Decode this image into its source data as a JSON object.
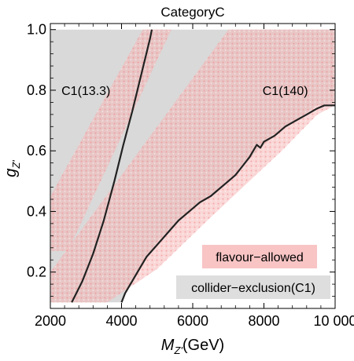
{
  "chart_data": {
    "type": "area",
    "title": "CategoryC",
    "xlabel": {
      "main": "M",
      "sub": "Z'",
      "unit": "(GeV)"
    },
    "ylabel": {
      "main": "g",
      "sub": "Z'"
    },
    "xlim": [
      2000,
      10000
    ],
    "ylim": [
      0.08,
      1.02
    ],
    "xticks": [
      2000,
      4000,
      6000,
      8000,
      10000
    ],
    "xtick_labels": [
      "2000",
      "4000",
      "6000",
      "8000",
      "10 000"
    ],
    "yticks": [
      0.2,
      0.4,
      0.6,
      0.8,
      1.0
    ],
    "ytick_labels": [
      "0.2",
      "0.4",
      "0.6",
      "0.8",
      "1.0"
    ],
    "colors": {
      "collider": "#d9d9d9",
      "flavour": "#f7a3a3",
      "contour": "#222222",
      "frame": "#000000"
    },
    "regions": {
      "collider_exclusion_boundary": [
        [
          2000,
          1.0
        ],
        [
          2000,
          0.1
        ],
        [
          4000,
          0.1
        ],
        [
          4100,
          0.13
        ],
        [
          4300,
          0.17
        ],
        [
          4600,
          0.23
        ],
        [
          5000,
          0.3
        ],
        [
          5600,
          0.37
        ],
        [
          6200,
          0.43
        ],
        [
          6700,
          0.47
        ],
        [
          7200,
          0.52
        ],
        [
          7500,
          0.56
        ],
        [
          7800,
          0.6
        ],
        [
          8100,
          0.63
        ],
        [
          8500,
          0.67
        ],
        [
          9000,
          0.71
        ],
        [
          9500,
          0.75
        ],
        [
          10000,
          0.75
        ],
        [
          10000,
          1.0
        ]
      ],
      "flavour_bands": [
        {
          "name": "upper",
          "polygon": [
            [
              2000,
              0.27
            ],
            [
              2000,
              0.45
            ],
            [
              4500,
              0.98
            ],
            [
              4600,
              1.0
            ],
            [
              5400,
              1.0
            ],
            [
              2500,
              0.27
            ]
          ]
        },
        {
          "name": "lower",
          "polygon": [
            [
              2000,
              0.1
            ],
            [
              2000,
              0.2
            ],
            [
              7000,
              1.0
            ],
            [
              10000,
              1.0
            ],
            [
              10000,
              0.75
            ],
            [
              9500,
              0.72
            ],
            [
              8500,
              0.6
            ],
            [
              6500,
              0.38
            ],
            [
              5000,
              0.21
            ],
            [
              3600,
              0.1
            ]
          ]
        }
      ]
    },
    "contours": [
      {
        "label": "C1(13.3)",
        "label_at": [
          3000,
          0.8
        ],
        "points": [
          [
            2600,
            0.1
          ],
          [
            2900,
            0.17
          ],
          [
            3200,
            0.26
          ],
          [
            3500,
            0.37
          ],
          [
            3800,
            0.5
          ],
          [
            4050,
            0.62
          ],
          [
            4300,
            0.73
          ],
          [
            4550,
            0.85
          ],
          [
            4800,
            0.97
          ],
          [
            4850,
            1.0
          ]
        ]
      },
      {
        "label": "C1(140)",
        "label_at": [
          8600,
          0.8
        ],
        "points": [
          [
            4000,
            0.1
          ],
          [
            4100,
            0.13
          ],
          [
            4300,
            0.17
          ],
          [
            4500,
            0.21
          ],
          [
            4700,
            0.25
          ],
          [
            5000,
            0.29
          ],
          [
            5300,
            0.33
          ],
          [
            5600,
            0.37
          ],
          [
            5900,
            0.4
          ],
          [
            6200,
            0.43
          ],
          [
            6500,
            0.45
          ],
          [
            6700,
            0.47
          ],
          [
            7000,
            0.5
          ],
          [
            7200,
            0.52
          ],
          [
            7400,
            0.55
          ],
          [
            7600,
            0.58
          ],
          [
            7700,
            0.6
          ],
          [
            7800,
            0.62
          ],
          [
            7900,
            0.61
          ],
          [
            8000,
            0.63
          ],
          [
            8300,
            0.65
          ],
          [
            8600,
            0.68
          ],
          [
            8900,
            0.7
          ],
          [
            9200,
            0.72
          ],
          [
            9500,
            0.74
          ],
          [
            9700,
            0.75
          ],
          [
            10000,
            0.75
          ]
        ]
      }
    ],
    "legend": {
      "placement": "bottom-right",
      "entries": [
        {
          "label": "flavour−allowed",
          "color": "#f8c4c4"
        },
        {
          "label": "collider−exclusion(C1)",
          "color": "#dedede"
        }
      ]
    },
    "grid": false
  }
}
